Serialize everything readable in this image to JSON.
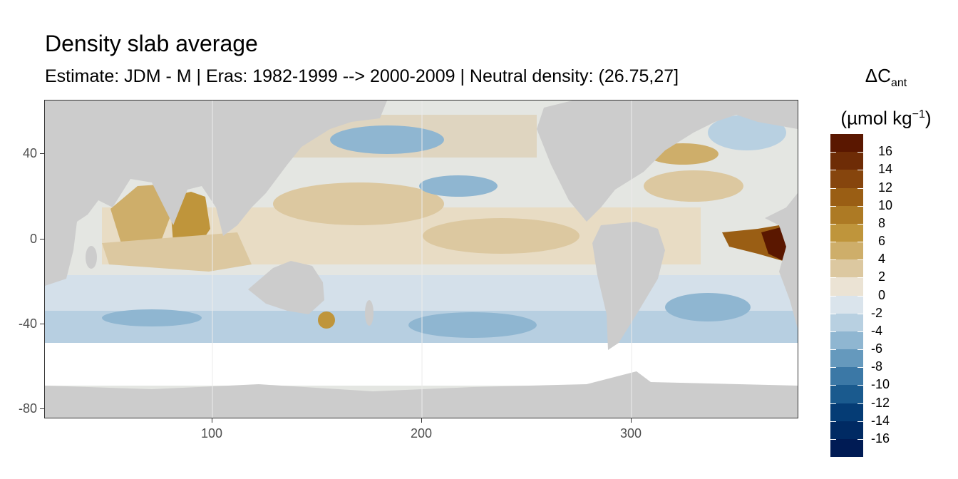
{
  "title": "Density slab average",
  "subtitle": "Estimate: JDM - M | Eras: 1982-1999 --> 2000-2009 | Neutral density: (26.75,27]",
  "map": {
    "projection": "longitude-latitude",
    "x_range": [
      20,
      380
    ],
    "y_range": [
      -85,
      65
    ],
    "x_ticks": [
      100,
      200,
      300
    ],
    "y_ticks": [
      40,
      0,
      -40,
      -80
    ],
    "land_color": "#cccccc",
    "missing_color": "#ffffff",
    "grid": true
  },
  "legend": {
    "title_main": "ΔC",
    "title_sub": "ant",
    "unit_prefix": "(µmol kg",
    "unit_exp": "−1",
    "unit_suffix": ")",
    "labels": [
      "16",
      "14",
      "12",
      "10",
      "8",
      "6",
      "4",
      "2",
      "0",
      "-2",
      "-4",
      "-6",
      "-8",
      "-10",
      "-12",
      "-14",
      "-16"
    ],
    "colors": [
      "#5a1700",
      "#6e2c06",
      "#86450d",
      "#9a5e14",
      "#ad7a24",
      "#bf953b",
      "#ceae6a",
      "#dcc8a0",
      "#ebe3d4",
      "#dae4ec",
      "#b8d0e1",
      "#8fb6d1",
      "#6599bd",
      "#3b78a6",
      "#1a5a8e",
      "#053c75",
      "#002a63",
      "#001b54"
    ]
  }
}
